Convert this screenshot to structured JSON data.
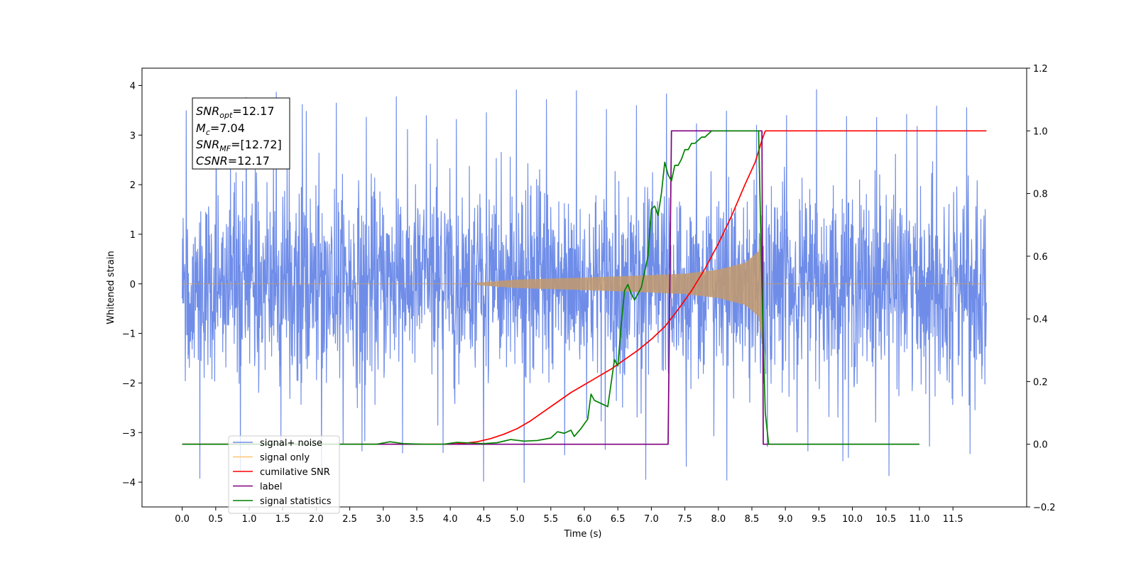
{
  "chart_data": {
    "type": "line",
    "xlabel": "Time (s)",
    "ylabel": "Whitened strain",
    "xlim": [
      -0.6,
      12.6
    ],
    "ylim": [
      -4.5,
      4.35
    ],
    "y2lim": [
      -0.2,
      1.2
    ],
    "x_ticks": [
      "0.0",
      "0.5",
      "1.0",
      "1.5",
      "2.0",
      "2.5",
      "3.0",
      "3.5",
      "4.0",
      "4.5",
      "5.0",
      "5.5",
      "6.0",
      "6.5",
      "7.0",
      "7.5",
      "8.0",
      "8.5",
      "9.0",
      "9.5",
      "10.0",
      "10.5",
      "11.0",
      "11.5"
    ],
    "y_ticks": [
      "4",
      "3",
      "2",
      "1",
      "0",
      "−1",
      "−2",
      "−3",
      "−4"
    ],
    "y2_ticks": [
      "1.2",
      "1.0",
      "0.8",
      "0.6",
      "0.4",
      "0.2",
      "0.0",
      "−0.2"
    ],
    "annotation": {
      "snr_opt": {
        "main": "SNR",
        "sub": "opt",
        "value": "=12.17"
      },
      "mc": {
        "main": "M",
        "sub": "c",
        "value": "=7.04"
      },
      "snr_mf": {
        "main": "SNR",
        "sub": "MF",
        "value": "=[12.72]"
      },
      "csnr": {
        "main": "CSNR",
        "value": "=12.17"
      }
    },
    "legend": {
      "placement": "lower-left",
      "entries": [
        {
          "label": "signal+ noise",
          "color": "#6f8de8"
        },
        {
          "label": "signal only",
          "color": "#ffc66e"
        },
        {
          "label": "cumilative SNR",
          "color": "#ff0000"
        },
        {
          "label": "label",
          "color": "#800080"
        },
        {
          "label": "signal statistics",
          "color": "#008000"
        }
      ]
    },
    "series": [
      {
        "name": "signal+ noise",
        "axis": "left",
        "color": "#6f8de8",
        "kind": "noise",
        "t_start": 0.0,
        "t_end": 12.0,
        "samples": 2600,
        "sigma": 1.0,
        "peak_max": 3.95,
        "peak_min": -4.1
      },
      {
        "name": "signal only",
        "axis": "left",
        "color": "#c49a6c",
        "kind": "chirp",
        "t_start": 0.0,
        "t_merge": 8.65,
        "t_end": 12.0,
        "envelope": [
          [
            4.4,
            0.02
          ],
          [
            5.0,
            0.08
          ],
          [
            6.0,
            0.12
          ],
          [
            7.0,
            0.17
          ],
          [
            7.5,
            0.2
          ],
          [
            8.0,
            0.28
          ],
          [
            8.4,
            0.42
          ],
          [
            8.6,
            0.65
          ],
          [
            8.65,
            1.22
          ]
        ]
      },
      {
        "name": "cumilative SNR",
        "axis": "right",
        "color": "#ff0000",
        "x": [
          0.0,
          4.0,
          4.2,
          4.4,
          4.6,
          4.8,
          5.0,
          5.2,
          5.4,
          5.6,
          5.8,
          6.0,
          6.2,
          6.4,
          6.6,
          6.8,
          7.0,
          7.2,
          7.4,
          7.6,
          7.8,
          8.0,
          8.2,
          8.4,
          8.55,
          8.65,
          8.7,
          12.0
        ],
        "values": [
          0.0,
          0.0,
          0.003,
          0.008,
          0.018,
          0.032,
          0.05,
          0.075,
          0.105,
          0.135,
          0.165,
          0.19,
          0.215,
          0.24,
          0.27,
          0.3,
          0.335,
          0.375,
          0.43,
          0.49,
          0.56,
          0.64,
          0.73,
          0.83,
          0.9,
          0.97,
          1.0,
          1.0
        ]
      },
      {
        "name": "label",
        "axis": "right",
        "color": "#800080",
        "x": [
          0.0,
          7.25,
          7.3,
          8.65,
          8.67,
          11.0
        ],
        "values": [
          0.0,
          0.0,
          1.0,
          1.0,
          0.0,
          0.0
        ]
      },
      {
        "name": "signal statistics",
        "axis": "right",
        "color": "#008000",
        "x": [
          0.0,
          2.9,
          3.1,
          3.3,
          3.6,
          3.9,
          4.1,
          4.3,
          4.5,
          4.7,
          4.9,
          5.1,
          5.3,
          5.5,
          5.6,
          5.7,
          5.8,
          5.85,
          5.95,
          6.05,
          6.1,
          6.15,
          6.25,
          6.35,
          6.45,
          6.5,
          6.55,
          6.6,
          6.65,
          6.7,
          6.75,
          6.85,
          6.95,
          7.0,
          7.05,
          7.1,
          7.15,
          7.2,
          7.25,
          7.3,
          7.35,
          7.4,
          7.45,
          7.5,
          7.55,
          7.6,
          7.65,
          7.7,
          7.75,
          7.8,
          7.85,
          7.9,
          8.0,
          8.6,
          8.65,
          8.7,
          8.75,
          11.0
        ],
        "values": [
          0.0,
          0.0,
          0.008,
          0.002,
          0.0,
          0.0,
          0.006,
          0.004,
          0.002,
          0.005,
          0.015,
          0.01,
          0.012,
          0.02,
          0.04,
          0.035,
          0.045,
          0.025,
          0.05,
          0.08,
          0.16,
          0.14,
          0.13,
          0.12,
          0.27,
          0.25,
          0.38,
          0.49,
          0.51,
          0.48,
          0.46,
          0.5,
          0.6,
          0.75,
          0.76,
          0.73,
          0.8,
          0.9,
          0.86,
          0.84,
          0.89,
          0.89,
          0.91,
          0.94,
          0.94,
          0.96,
          0.96,
          0.97,
          0.98,
          0.98,
          0.99,
          1.0,
          1.0,
          1.0,
          0.5,
          0.1,
          0.0,
          0.0
        ]
      }
    ]
  }
}
